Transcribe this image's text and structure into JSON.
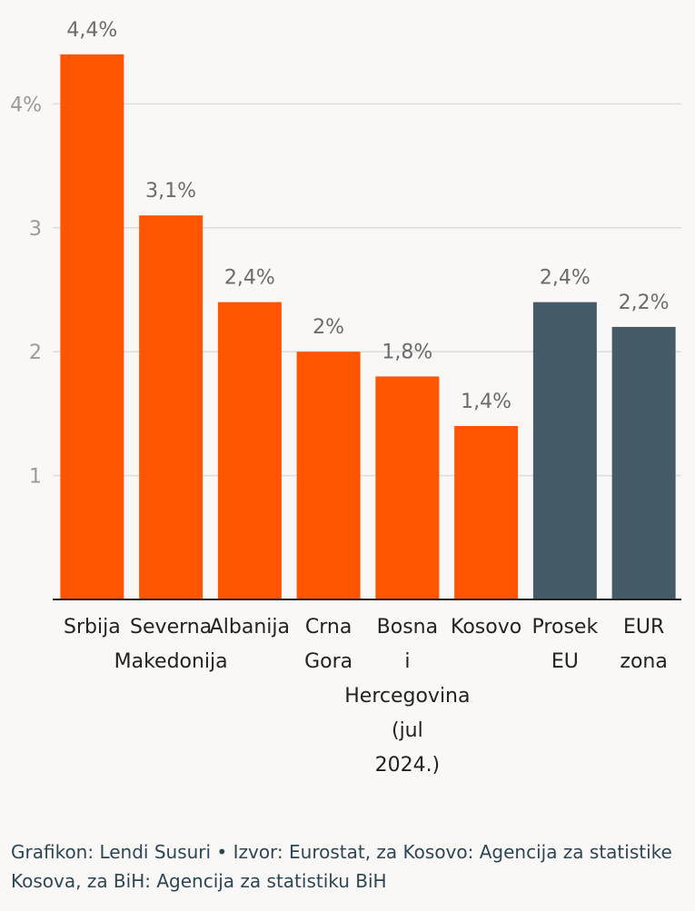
{
  "chart_data": {
    "type": "bar",
    "categories": [
      "Srbija",
      "Severna Makedonija",
      "Albanija",
      "Crna Gora",
      "Bosna i Hercegovina (jul 2024.)",
      "Kosovo",
      "Prosek EU",
      "EUR zona"
    ],
    "category_lines": [
      [
        "Srbija"
      ],
      [
        "Severna",
        "Makedonija"
      ],
      [
        "Albanija"
      ],
      [
        "Crna",
        "Gora"
      ],
      [
        "Bosna",
        "i",
        "Hercegovina",
        "(jul",
        "2024.)"
      ],
      [
        "Kosovo"
      ],
      [
        "Prosek",
        "EU"
      ],
      [
        "EUR",
        "zona"
      ]
    ],
    "values": [
      4.4,
      3.1,
      2.4,
      2.0,
      1.8,
      1.4,
      2.4,
      2.2
    ],
    "data_labels": [
      "4,4%",
      "3,1%",
      "2,4%",
      "2%",
      "1,8%",
      "1,4%",
      "2,4%",
      "2,2%"
    ],
    "bar_colors": [
      "#ff5500",
      "#ff5500",
      "#ff5500",
      "#ff5500",
      "#ff5500",
      "#ff5500",
      "#455c68",
      "#455c68"
    ],
    "yticks": [
      {
        "value": 1,
        "label": "1"
      },
      {
        "value": 2,
        "label": "2"
      },
      {
        "value": 3,
        "label": "3"
      },
      {
        "value": 4,
        "label": "4%"
      }
    ],
    "ylim": [
      0,
      4.4
    ],
    "grid": true,
    "title": "",
    "xlabel": "",
    "ylabel": ""
  },
  "footer": {
    "credit": "Grafikon: Lendi Susuri • Izvor: Eurostat, za Kosovo: Agencija za statistike Kosova, za BiH: Agencija za statistiku BiH"
  }
}
